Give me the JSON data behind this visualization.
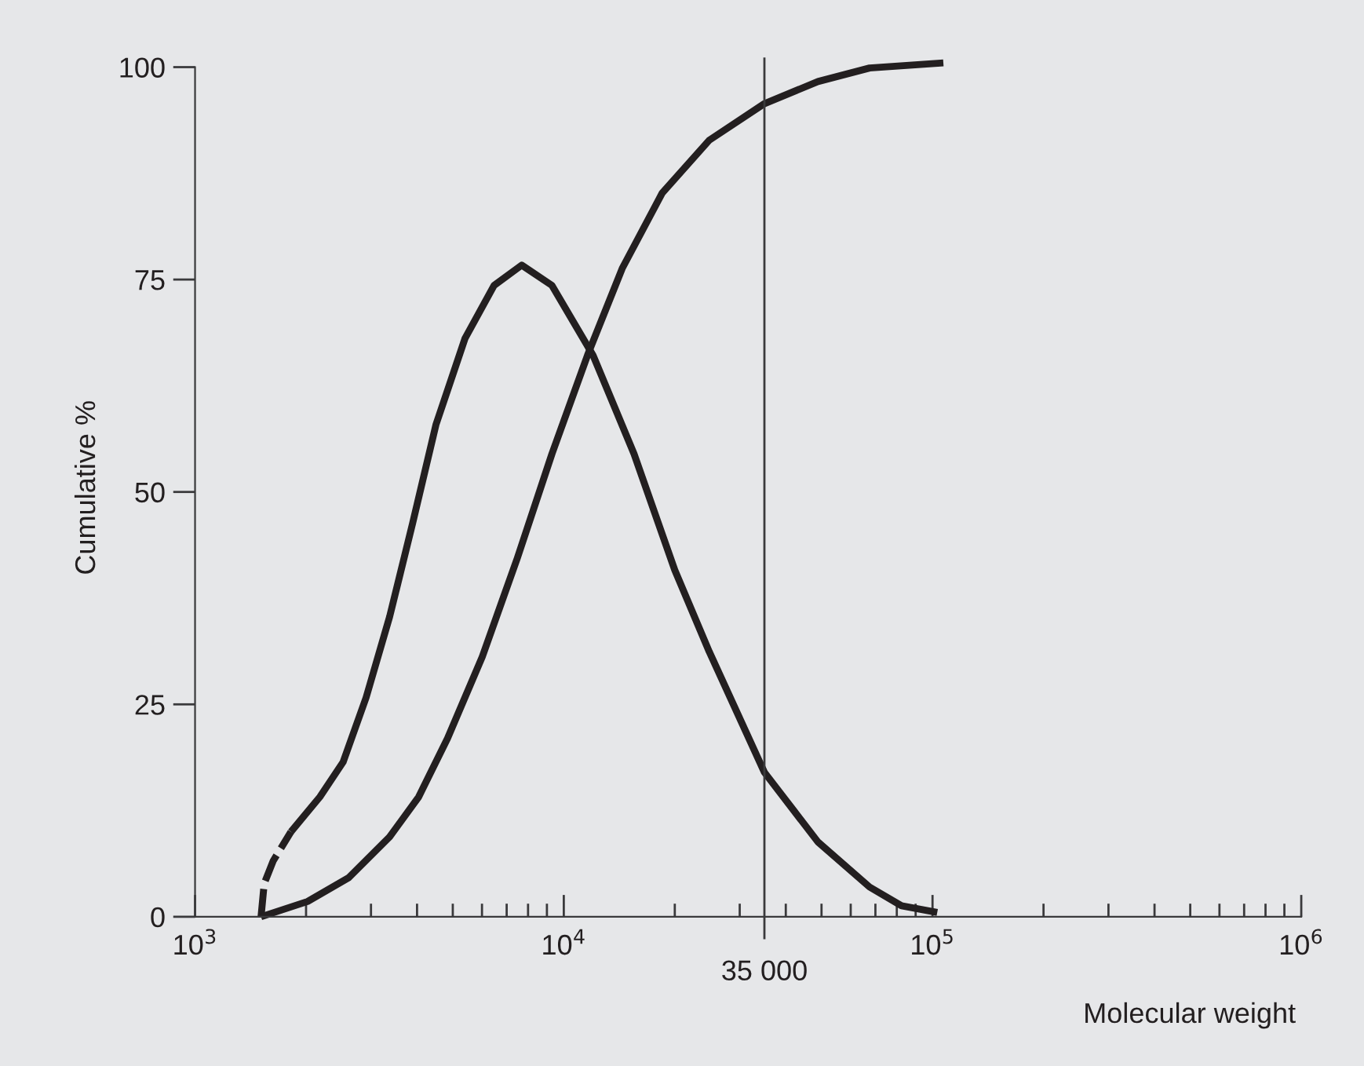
{
  "chart_data": {
    "type": "line",
    "xlabel": "Molecular weight",
    "ylabel": "Cumulative %",
    "log": "x",
    "xlim": [
      1000,
      1000000
    ],
    "xticks": [
      {
        "value": 1000,
        "label": "10$^{3}$"
      },
      {
        "value": 10000,
        "label": "10$^{4}$"
      },
      {
        "value": 100000,
        "label": "10$^{5}$"
      },
      {
        "value": 1000000,
        "label": "10$^{6}$"
      }
    ],
    "ylim": [
      0,
      101
    ],
    "yticks": [
      0,
      25,
      50,
      75,
      100
    ],
    "grid": false,
    "legend": false,
    "marker": "none",
    "ref_lines": [
      {
        "axis": "x",
        "value": 35000,
        "label": "35 000",
        "color": "#3a3a3c",
        "line_style": "solid"
      }
    ],
    "series": [
      {
        "color": "#231f20",
        "line_style": "dashed",
        "x": [
          1510,
          1540,
          1630,
          1820
        ],
        "values": [
          0,
          3.9,
          6.6,
          10.0
        ]
      },
      {
        "color": "#231f20",
        "line_style": "solid",
        "x": [
          1820,
          2180,
          2520,
          2910,
          3370,
          3890,
          4500,
          5400,
          6470,
          7690,
          9290,
          12000,
          15500,
          20000,
          24800,
          35000,
          48900,
          67500,
          82400,
          103000
        ],
        "values": [
          10.0,
          14.1,
          18.2,
          25.8,
          35.3,
          46.3,
          57.9,
          68.1,
          74.3,
          76.7,
          74.3,
          66.1,
          54.5,
          40.8,
          31.2,
          17.0,
          8.8,
          3.5,
          1.3,
          0.5
        ]
      },
      {
        "color": "#231f20",
        "line_style": "solid",
        "x": [
          1510,
          2020,
          2610,
          3370,
          4040,
          4840,
          6010,
          7480,
          9290,
          11600,
          14400,
          18500,
          24800,
          35000,
          48900,
          67500,
          107000
        ],
        "values": [
          0,
          1.8,
          4.6,
          9.4,
          14.1,
          21.0,
          30.6,
          42.2,
          54.5,
          66.1,
          76.3,
          85.2,
          91.4,
          95.7,
          98.3,
          99.9,
          100.5
        ]
      }
    ]
  }
}
